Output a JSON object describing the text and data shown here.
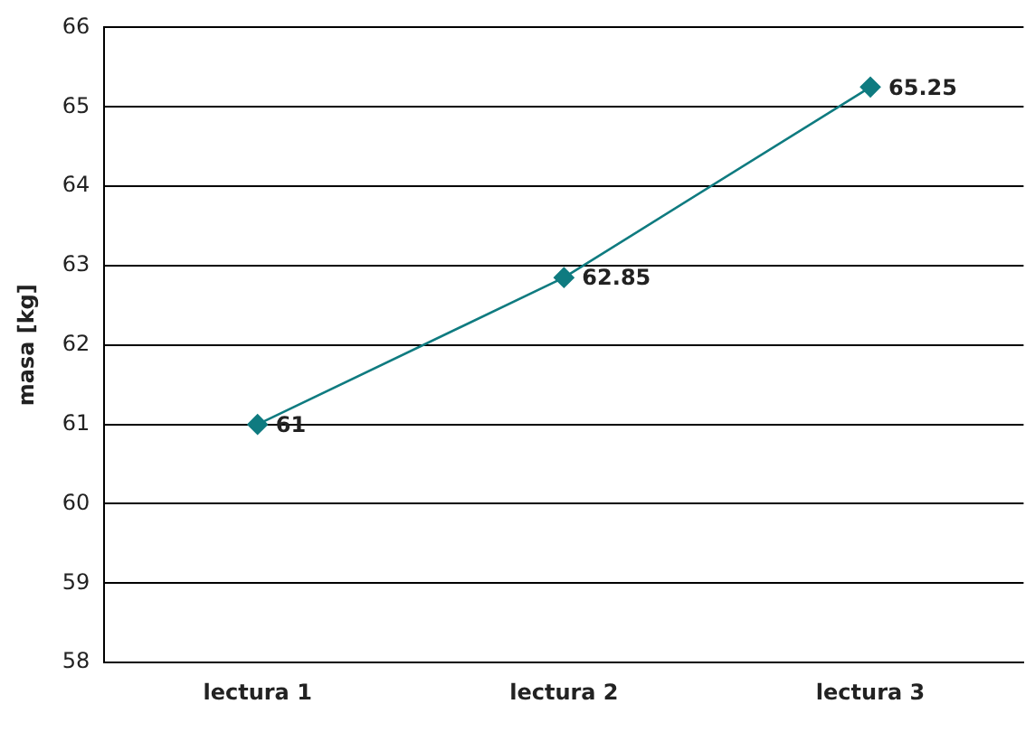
{
  "chart_data": {
    "type": "line",
    "ylabel": "masa [kg]",
    "categories": [
      "lectura 1",
      "lectura 2",
      "lectura 3"
    ],
    "series": [
      {
        "color": "#0f7b80",
        "values": [
          61,
          62.85,
          65.25
        ]
      }
    ],
    "ylim": [
      58,
      66
    ],
    "yticks": [
      58,
      59,
      60,
      61,
      62,
      63,
      64,
      65,
      66
    ],
    "grid": "y",
    "legend": false,
    "marker": "diamond",
    "data_labels": true
  }
}
